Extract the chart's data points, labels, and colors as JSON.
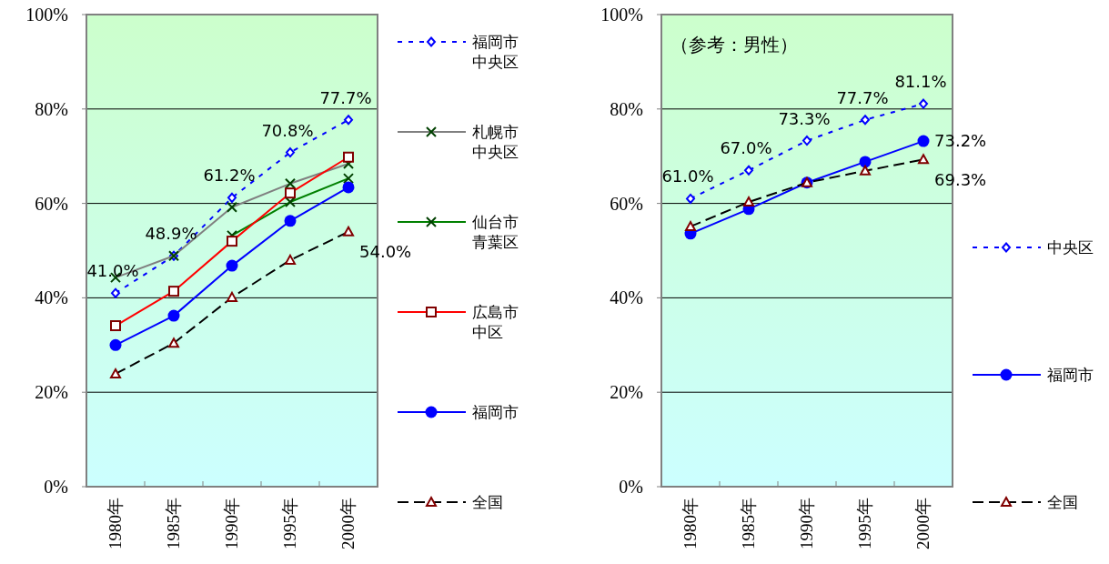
{
  "chart_data": [
    {
      "type": "line",
      "categories": [
        "1980年",
        "1985年",
        "1990年",
        "1995年",
        "2000年"
      ],
      "ylim": [
        0,
        100
      ],
      "yticks": [
        {
          "value": 0,
          "label": "0%"
        },
        {
          "value": 20,
          "label": "20%"
        },
        {
          "value": 40,
          "label": "40%"
        },
        {
          "value": 60,
          "label": "60%"
        },
        {
          "value": 80,
          "label": "80%"
        },
        {
          "value": 100,
          "label": "100%"
        }
      ],
      "grid": "y",
      "legend": "right",
      "series": [
        {
          "name": "福岡市中央区",
          "color": "#0000ff",
          "values": [
            41.0,
            48.9,
            61.2,
            70.8,
            77.7
          ],
          "marker": "diamond",
          "line_style": "dotted",
          "value_labels": [
            "41.0%",
            "48.9%",
            "61.2%",
            "70.8%",
            "77.7%"
          ]
        },
        {
          "name": "札幌市中央区",
          "color": "#808080",
          "values": [
            44.3,
            48.9,
            59.2,
            64.2,
            68.4
          ],
          "marker": "cross",
          "line_style": "solid"
        },
        {
          "name": "仙台市青葉区",
          "color": "#008000",
          "values": [
            null,
            null,
            53.2,
            60.3,
            65.3
          ],
          "marker": "cross",
          "line_style": "solid"
        },
        {
          "name": "広島市中区",
          "color": "#ff0000",
          "values": [
            34.1,
            41.4,
            52.0,
            62.2,
            69.8
          ],
          "marker": "square",
          "line_style": "solid"
        },
        {
          "name": "福岡市",
          "color": "#0000ff",
          "values": [
            30.0,
            36.2,
            46.8,
            56.3,
            63.4
          ],
          "marker": "circle",
          "line_style": "solid"
        },
        {
          "name": "全国",
          "color": "#000000",
          "values": [
            23.9,
            30.4,
            40.1,
            48.0,
            54.0
          ],
          "marker": "triangle",
          "line_style": "dashed",
          "value_labels": [
            null,
            null,
            null,
            null,
            "54.0%"
          ]
        }
      ]
    },
    {
      "type": "line",
      "title": "（参考：男性）",
      "categories": [
        "1980年",
        "1985年",
        "1990年",
        "1995年",
        "2000年"
      ],
      "ylim": [
        0,
        100
      ],
      "yticks": [
        {
          "value": 0,
          "label": "0%"
        },
        {
          "value": 20,
          "label": "20%"
        },
        {
          "value": 40,
          "label": "40%"
        },
        {
          "value": 60,
          "label": "60%"
        },
        {
          "value": 80,
          "label": "80%"
        },
        {
          "value": 100,
          "label": "100%"
        }
      ],
      "grid": "y",
      "legend": "right",
      "series": [
        {
          "name": "中央区",
          "color": "#0000ff",
          "values": [
            61.0,
            67.0,
            73.3,
            77.7,
            81.1
          ],
          "marker": "diamond",
          "line_style": "dotted",
          "value_labels": [
            "61.0%",
            "67.0%",
            "73.3%",
            "77.7%",
            "81.1%"
          ]
        },
        {
          "name": "福岡市",
          "color": "#0000ff",
          "values": [
            53.6,
            58.8,
            64.4,
            68.8,
            73.2
          ],
          "marker": "circle",
          "line_style": "solid",
          "value_labels": [
            null,
            null,
            null,
            null,
            "73.2%"
          ]
        },
        {
          "name": "全国",
          "color": "#000000",
          "values": [
            55.1,
            60.3,
            64.4,
            66.9,
            69.3
          ],
          "marker": "triangle",
          "line_style": "dashed",
          "value_labels": [
            null,
            null,
            null,
            null,
            "69.3%"
          ]
        }
      ]
    }
  ]
}
